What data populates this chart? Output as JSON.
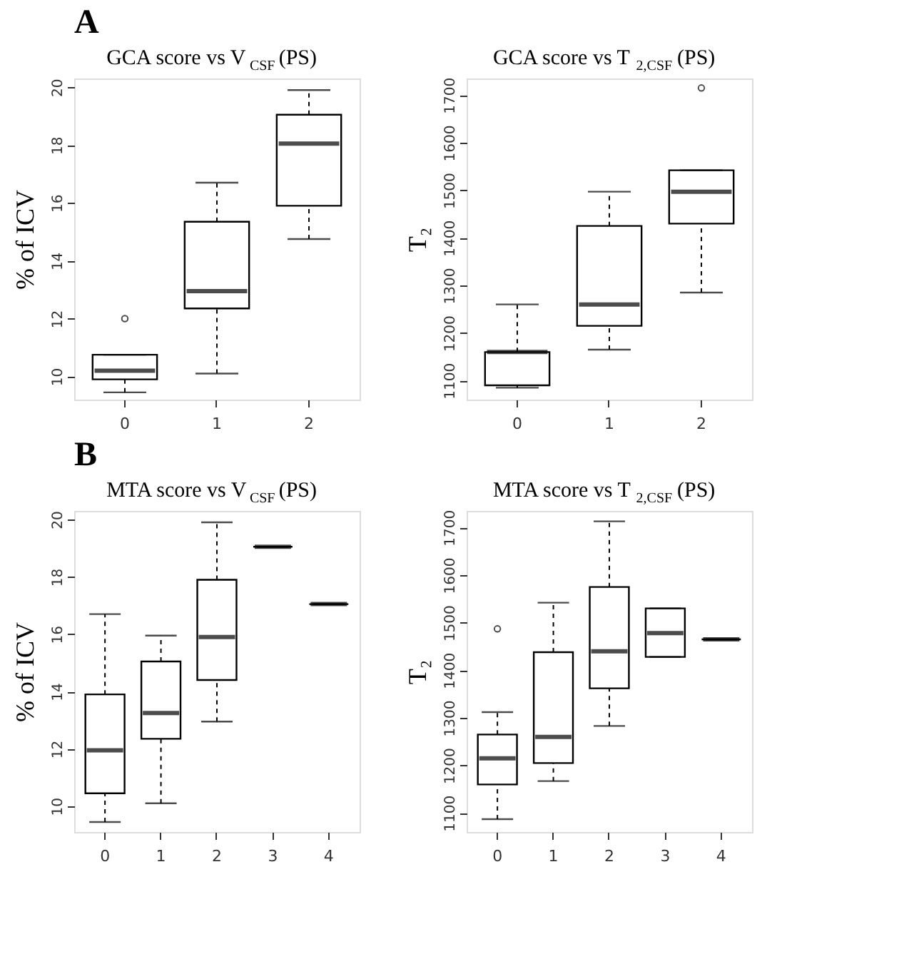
{
  "chart_data": [
    {
      "type": "box",
      "title": "GCA score vs V$_{CSF}$ (PS)",
      "ylabel": "% of ICV",
      "annotations": [
        "A"
      ],
      "categories": [
        "0",
        "1",
        "2"
      ],
      "ylim": [
        9.2,
        20.3
      ],
      "yticks": [
        10,
        12,
        14,
        16,
        18,
        20
      ],
      "boxes": [
        {
          "low": 9.45,
          "q1": 9.9,
          "median": 10.2,
          "q3": 10.75,
          "high": 10.75,
          "outliers": [
            12.0
          ]
        },
        {
          "low": 10.1,
          "q1": 12.35,
          "median": 12.95,
          "q3": 15.35,
          "high": 16.7
        },
        {
          "low": 14.75,
          "q1": 15.9,
          "median": 18.05,
          "q3": 19.05,
          "high": 19.9
        }
      ]
    },
    {
      "type": "box",
      "title": "GCA score vs T$_{2,CSF}$ (PS)",
      "ylabel": "T₂",
      "categories": [
        "0",
        "1",
        "2"
      ],
      "ylim": [
        1060,
        1735
      ],
      "yticks": [
        1100,
        1200,
        1300,
        1400,
        1500,
        1600,
        1700
      ],
      "boxes": [
        {
          "low": 1085,
          "q1": 1090,
          "median": 1160,
          "q3": 1160,
          "high": 1260
        },
        {
          "low": 1165,
          "q1": 1215,
          "median": 1260,
          "q3": 1425,
          "high": 1497
        },
        {
          "low": 1285,
          "q1": 1430,
          "median": 1497,
          "q3": 1542,
          "high": 1542,
          "outliers": [
            1715
          ]
        }
      ]
    },
    {
      "type": "box",
      "title": "MTA score vs V$_{CSF}$ (PS)",
      "ylabel": "% of ICV",
      "annotations": [
        "B"
      ],
      "categories": [
        "0",
        "1",
        "2",
        "3",
        "4"
      ],
      "ylim": [
        9.1,
        20.3
      ],
      "yticks": [
        10,
        12,
        14,
        16,
        18,
        20
      ],
      "boxes": [
        {
          "low": 9.45,
          "q1": 10.45,
          "median": 11.95,
          "q3": 13.9,
          "high": 16.7
        },
        {
          "low": 10.1,
          "q1": 12.35,
          "median": 13.25,
          "q3": 15.05,
          "high": 15.95
        },
        {
          "low": 12.95,
          "q1": 14.4,
          "median": 15.9,
          "q3": 17.9,
          "high": 19.9
        },
        {
          "low": 19.05,
          "q1": 19.05,
          "median": 19.05,
          "q3": 19.05,
          "high": 19.05
        },
        {
          "low": 17.05,
          "q1": 17.05,
          "median": 17.05,
          "q3": 17.05,
          "high": 17.05
        }
      ]
    },
    {
      "type": "box",
      "title": "MTA score vs T$_{2,CSF}$ (PS)",
      "ylabel": "T₂",
      "categories": [
        "0",
        "1",
        "2",
        "3",
        "4"
      ],
      "ylim": [
        1060,
        1735
      ],
      "yticks": [
        1100,
        1200,
        1300,
        1400,
        1500,
        1600,
        1700
      ],
      "boxes": [
        {
          "low": 1087,
          "q1": 1160,
          "median": 1215,
          "q3": 1265,
          "high": 1312,
          "outliers": [
            1487
          ]
        },
        {
          "low": 1167,
          "q1": 1205,
          "median": 1260,
          "q3": 1438,
          "high": 1542
        },
        {
          "low": 1283,
          "q1": 1362,
          "median": 1440,
          "q3": 1575,
          "high": 1713
        },
        {
          "low": 1428,
          "q1": 1428,
          "median": 1478,
          "q3": 1530,
          "high": 1530
        },
        {
          "low": 1465,
          "q1": 1465,
          "median": 1465,
          "q3": 1465,
          "high": 1465
        }
      ]
    }
  ]
}
